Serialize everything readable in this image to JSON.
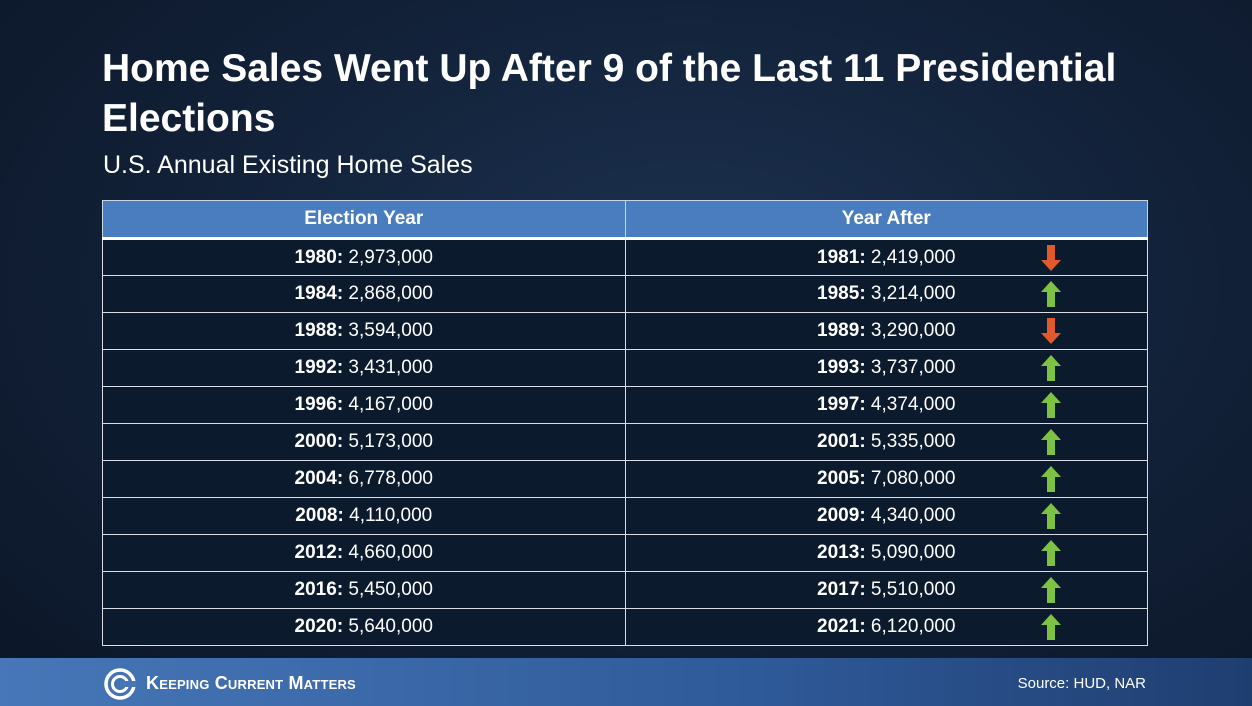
{
  "header": {
    "title": "Home Sales Went Up After 9 of the Last 11 Presidential Elections",
    "subtitle": "U.S. Annual Existing Home Sales"
  },
  "footer": {
    "logo_text": "Keeping Current Matters",
    "source": "Source: HUD, NAR"
  },
  "colors": {
    "up": "#7dc242",
    "down": "#e05a2b",
    "header_bg": "#4a7dbf"
  },
  "chart_data": {
    "type": "table",
    "title": "Home Sales Went Up After 9 of the Last 11 Presidential Elections",
    "subtitle": "U.S. Annual Existing Home Sales",
    "columns": [
      "Election Year",
      "Year After"
    ],
    "rows": [
      {
        "year": "1980",
        "sales": "2,973,000",
        "after_year": "1981",
        "after_sales": "2,419,000",
        "direction": "down"
      },
      {
        "year": "1984",
        "sales": "2,868,000",
        "after_year": "1985",
        "after_sales": "3,214,000",
        "direction": "up"
      },
      {
        "year": "1988",
        "sales": "3,594,000",
        "after_year": "1989",
        "after_sales": "3,290,000",
        "direction": "down"
      },
      {
        "year": "1992",
        "sales": "3,431,000",
        "after_year": "1993",
        "after_sales": "3,737,000",
        "direction": "up"
      },
      {
        "year": "1996",
        "sales": "4,167,000",
        "after_year": "1997",
        "after_sales": "4,374,000",
        "direction": "up"
      },
      {
        "year": "2000",
        "sales": "5,173,000",
        "after_year": "2001",
        "after_sales": "5,335,000",
        "direction": "up"
      },
      {
        "year": "2004",
        "sales": "6,778,000",
        "after_year": "2005",
        "after_sales": "7,080,000",
        "direction": "up"
      },
      {
        "year": "2008",
        "sales": "4,110,000",
        "after_year": "2009",
        "after_sales": "4,340,000",
        "direction": "up"
      },
      {
        "year": "2012",
        "sales": "4,660,000",
        "after_year": "2013",
        "after_sales": "5,090,000",
        "direction": "up"
      },
      {
        "year": "2016",
        "sales": "5,450,000",
        "after_year": "2017",
        "after_sales": "5,510,000",
        "direction": "up"
      },
      {
        "year": "2020",
        "sales": "5,640,000",
        "after_year": "2021",
        "after_sales": "6,120,000",
        "direction": "up"
      }
    ]
  }
}
